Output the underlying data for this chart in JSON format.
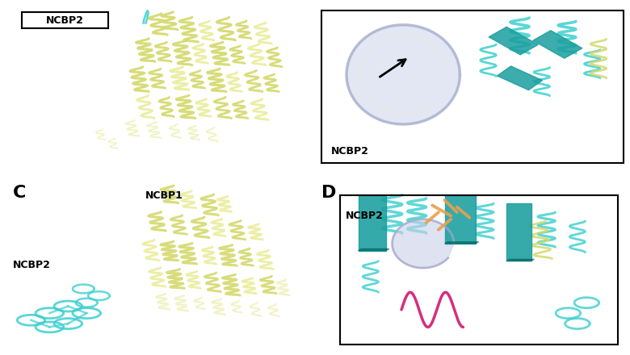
{
  "figure_width": 7.8,
  "figure_height": 4.4,
  "dpi": 100,
  "bg_color": "#ffffff",
  "panel_C_label": "C",
  "panel_D_label": "D",
  "panel_label_fontsize": 16,
  "panel_label_fontweight": "bold",
  "ncbp2_top_left": "NCBP2",
  "ncbp2_top_right": "NCBP2",
  "ncbp1_bottom_left": "NCBP1",
  "ncbp2_bottom_left": "NCBP2",
  "ncbp2_bottom_right": "NCBP2",
  "yellow": "#d4d96e",
  "yellow_light": "#eaed9e",
  "yellow_pale": "#f0f2c0",
  "cyan": "#3ecfcf",
  "cyan_light": "#7ddede",
  "teal": "#1a9e9e",
  "teal_dark": "#006060",
  "lavender": "#a0a8c8",
  "lavender_light": "#c8d0e8",
  "white_gray": "#e8e8e8",
  "orange": "#e8a050",
  "magenta": "#d01870",
  "black": "#000000",
  "label_fontsize": 8,
  "label_fontweight": "bold"
}
